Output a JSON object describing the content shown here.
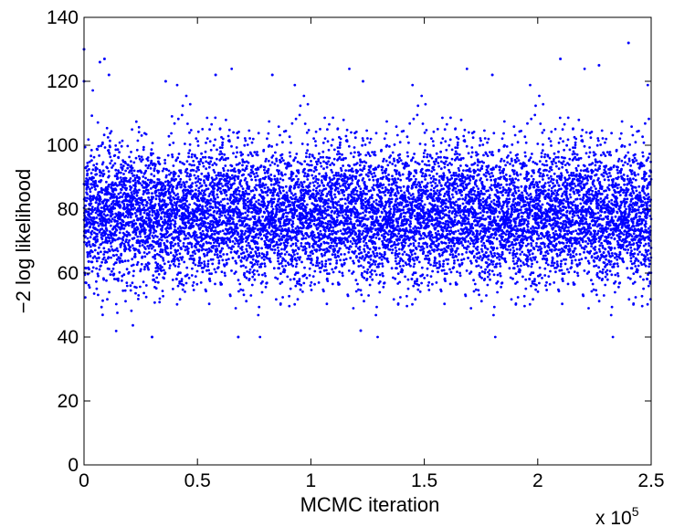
{
  "chart_data": {
    "type": "scatter",
    "title": "",
    "xlabel": "MCMC iteration",
    "ylabel": "−2 log likelihood",
    "xlim": [
      0,
      250000
    ],
    "ylim": [
      0,
      140
    ],
    "x_ticks": [
      0,
      50000,
      100000,
      150000,
      200000,
      250000
    ],
    "x_tick_labels": [
      "0",
      "0.5",
      "1",
      "1.5",
      "2",
      "2.5"
    ],
    "x_exponent_label": "x 10",
    "x_exponent_power": "5",
    "y_ticks": [
      0,
      20,
      40,
      60,
      80,
      100,
      120,
      140
    ],
    "y_tick_labels": [
      "0",
      "20",
      "40",
      "60",
      "80",
      "100",
      "120",
      "140"
    ],
    "grid": false,
    "legend": "none",
    "marker_color": "#0000ff",
    "summary": {
      "n_points_approx": 10000,
      "center": 78,
      "spread_sd": 11,
      "typical_range": [
        45,
        110
      ],
      "min": 40,
      "max": 132
    },
    "notable_points": [
      {
        "x": 0,
        "y": 130
      },
      {
        "x": 0,
        "y": 120
      },
      {
        "x": 7000,
        "y": 126
      },
      {
        "x": 9000,
        "y": 127
      },
      {
        "x": 11000,
        "y": 122
      },
      {
        "x": 30000,
        "y": 40
      },
      {
        "x": 36000,
        "y": 120
      },
      {
        "x": 58000,
        "y": 122
      },
      {
        "x": 68000,
        "y": 40
      },
      {
        "x": 83000,
        "y": 122
      },
      {
        "x": 123000,
        "y": 120
      },
      {
        "x": 122000,
        "y": 42
      },
      {
        "x": 180000,
        "y": 122
      },
      {
        "x": 210000,
        "y": 127
      },
      {
        "x": 227000,
        "y": 125
      },
      {
        "x": 240000,
        "y": 132
      }
    ]
  }
}
